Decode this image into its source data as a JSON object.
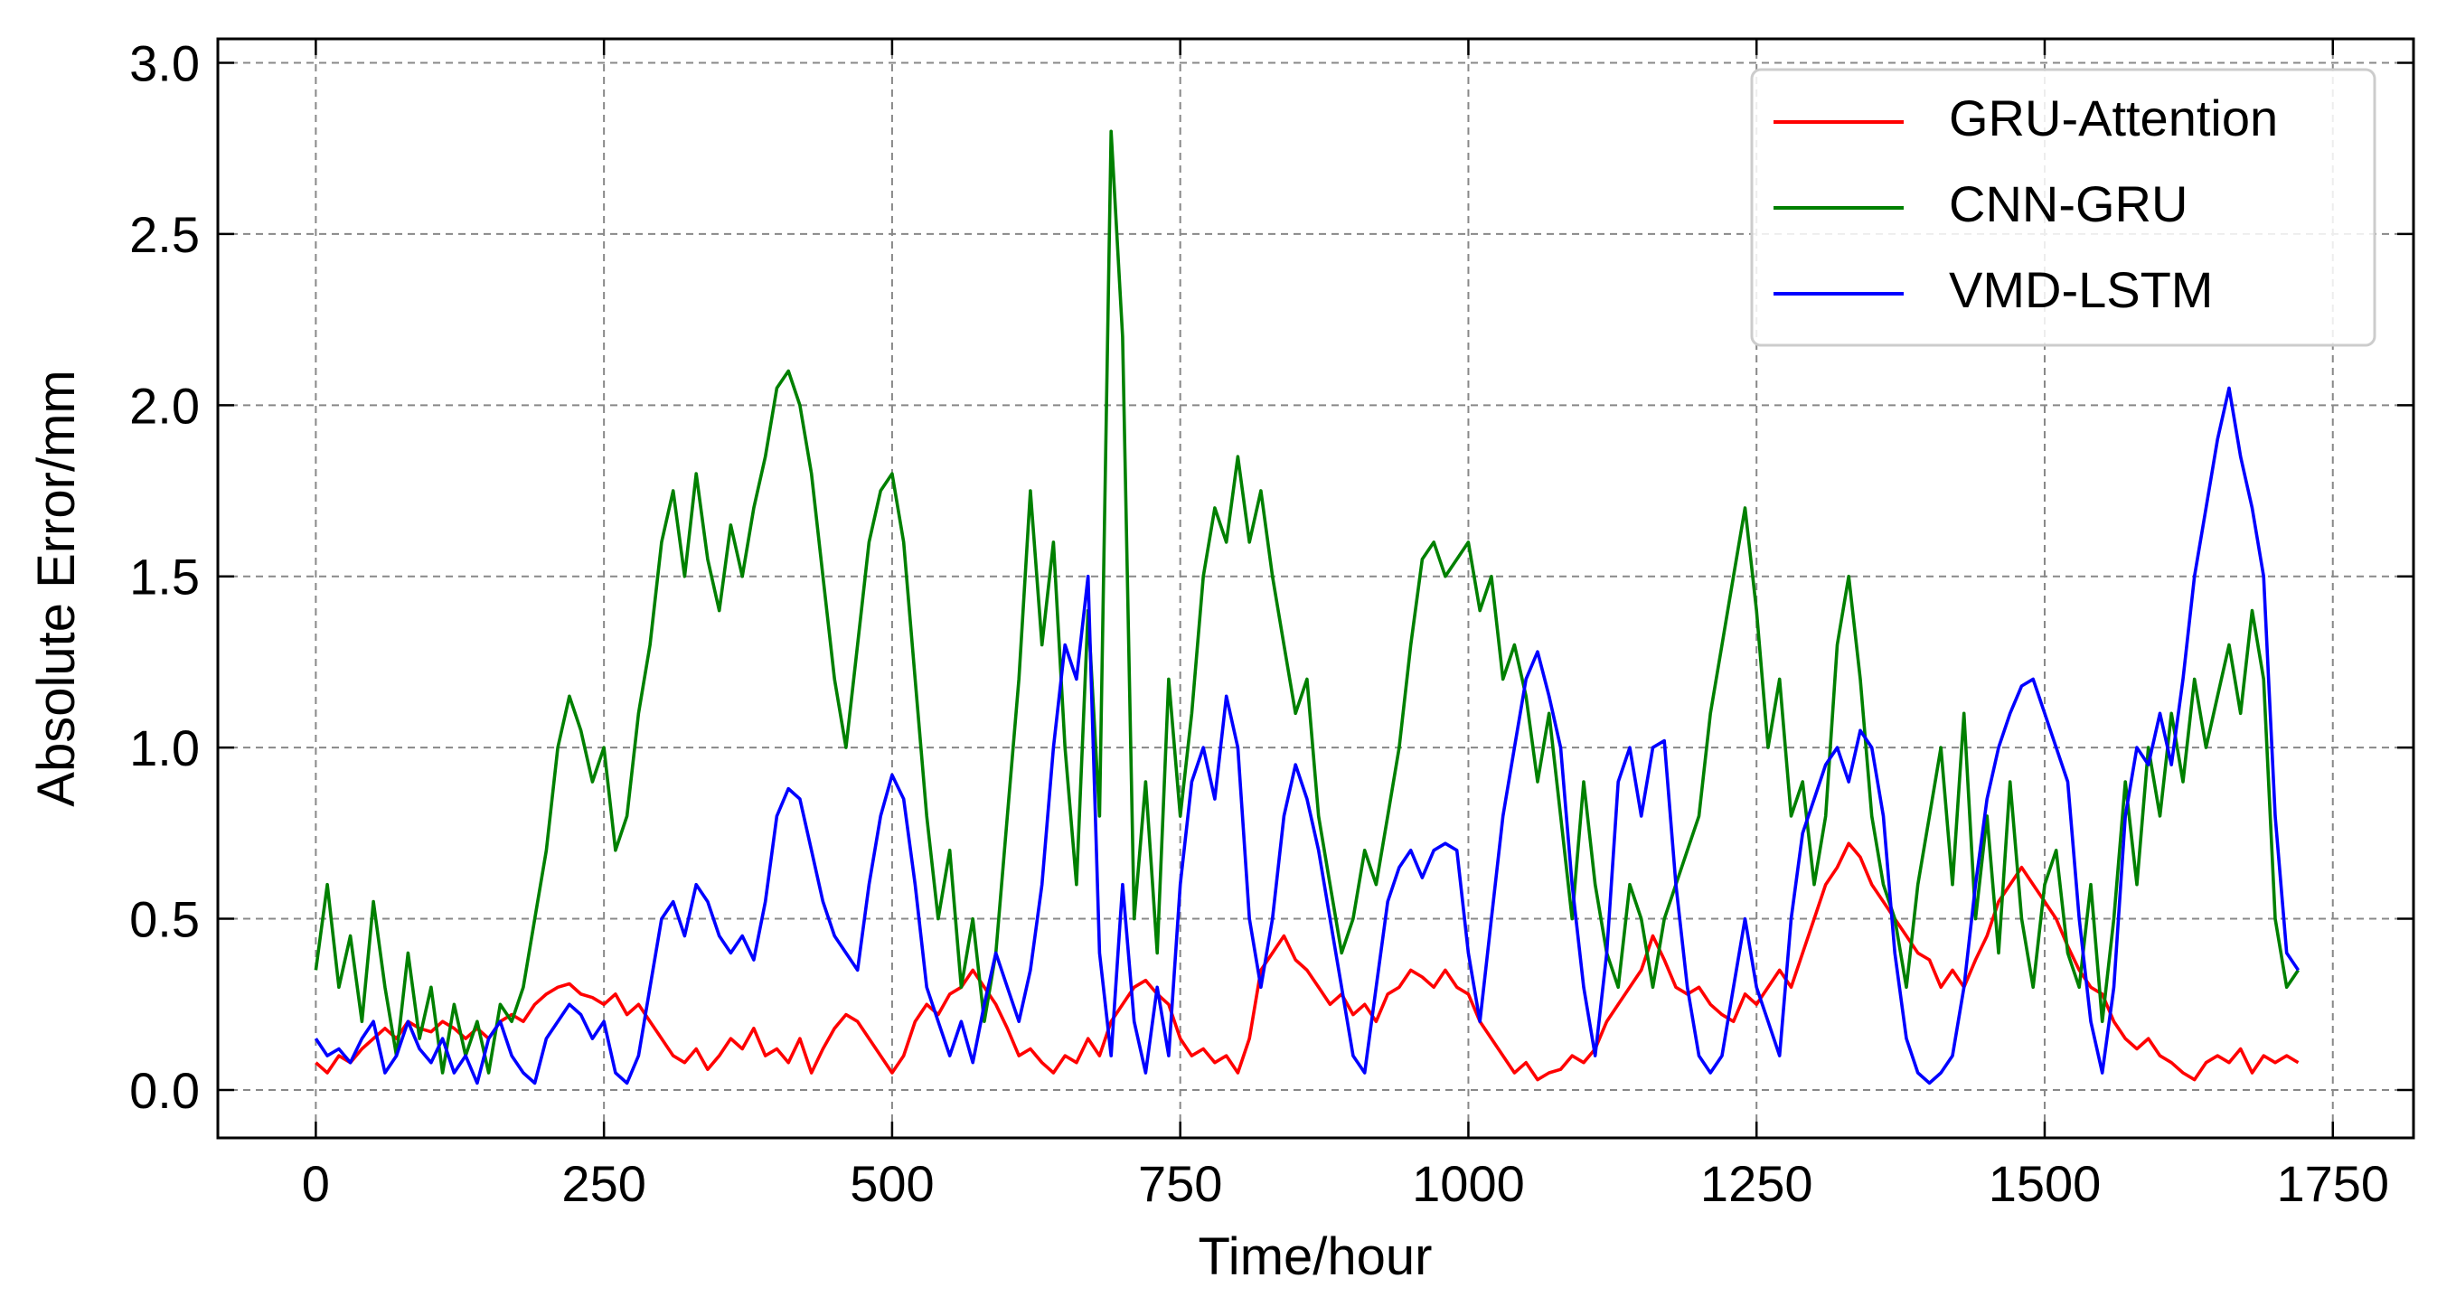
{
  "chart_data": {
    "type": "line",
    "xlabel": "Time/hour",
    "ylabel": "Absolute Error/mm",
    "xlim": [
      -85,
      1820
    ],
    "ylim": [
      -0.14,
      3.07
    ],
    "xticks": [
      0,
      250,
      500,
      750,
      1000,
      1250,
      1500,
      1750
    ],
    "yticks": [
      {
        "value": 0,
        "label": "0.0"
      },
      0.5,
      {
        "value": 1,
        "label": "1.0"
      },
      1.5,
      {
        "value": 2,
        "label": "2.0"
      },
      2.5,
      {
        "value": 3,
        "label": "3.0"
      }
    ],
    "grid": true,
    "legend": "upper right",
    "x": [
      0,
      10,
      20,
      30,
      40,
      50,
      60,
      70,
      80,
      90,
      100,
      110,
      120,
      130,
      140,
      150,
      160,
      170,
      180,
      190,
      200,
      210,
      220,
      230,
      240,
      250,
      260,
      270,
      280,
      290,
      300,
      310,
      320,
      330,
      340,
      350,
      360,
      370,
      380,
      390,
      400,
      410,
      420,
      430,
      440,
      450,
      460,
      470,
      480,
      490,
      500,
      510,
      520,
      530,
      540,
      550,
      560,
      570,
      580,
      590,
      600,
      610,
      620,
      630,
      640,
      650,
      660,
      670,
      680,
      690,
      700,
      710,
      720,
      730,
      740,
      750,
      760,
      770,
      780,
      790,
      800,
      810,
      820,
      830,
      840,
      850,
      860,
      870,
      880,
      890,
      900,
      910,
      920,
      930,
      940,
      950,
      960,
      970,
      980,
      990,
      1000,
      1010,
      1020,
      1030,
      1040,
      1050,
      1060,
      1070,
      1080,
      1090,
      1100,
      1110,
      1120,
      1130,
      1140,
      1150,
      1160,
      1170,
      1180,
      1190,
      1200,
      1210,
      1220,
      1230,
      1240,
      1250,
      1260,
      1270,
      1280,
      1290,
      1300,
      1310,
      1320,
      1330,
      1340,
      1350,
      1360,
      1370,
      1380,
      1390,
      1400,
      1410,
      1420,
      1430,
      1440,
      1450,
      1460,
      1470,
      1480,
      1490,
      1500,
      1510,
      1520,
      1530,
      1540,
      1550,
      1560,
      1570,
      1580,
      1590,
      1600,
      1610,
      1620,
      1630,
      1640,
      1650,
      1660,
      1670,
      1680,
      1690,
      1700,
      1710,
      1720
    ],
    "series": [
      {
        "name": "GRU-Attention",
        "color": "#ff0000",
        "values": [
          0.08,
          0.05,
          0.1,
          0.08,
          0.12,
          0.15,
          0.18,
          0.15,
          0.2,
          0.18,
          0.17,
          0.2,
          0.18,
          0.15,
          0.18,
          0.15,
          0.2,
          0.22,
          0.2,
          0.25,
          0.28,
          0.3,
          0.31,
          0.28,
          0.27,
          0.25,
          0.28,
          0.22,
          0.25,
          0.2,
          0.15,
          0.1,
          0.08,
          0.12,
          0.06,
          0.1,
          0.15,
          0.12,
          0.18,
          0.1,
          0.12,
          0.08,
          0.15,
          0.05,
          0.12,
          0.18,
          0.22,
          0.2,
          0.15,
          0.1,
          0.05,
          0.1,
          0.2,
          0.25,
          0.22,
          0.28,
          0.3,
          0.35,
          0.3,
          0.25,
          0.18,
          0.1,
          0.12,
          0.08,
          0.05,
          0.1,
          0.08,
          0.15,
          0.1,
          0.2,
          0.25,
          0.3,
          0.32,
          0.28,
          0.25,
          0.15,
          0.1,
          0.12,
          0.08,
          0.1,
          0.05,
          0.15,
          0.35,
          0.4,
          0.45,
          0.38,
          0.35,
          0.3,
          0.25,
          0.28,
          0.22,
          0.25,
          0.2,
          0.28,
          0.3,
          0.35,
          0.33,
          0.3,
          0.35,
          0.3,
          0.28,
          0.2,
          0.15,
          0.1,
          0.05,
          0.08,
          0.03,
          0.05,
          0.06,
          0.1,
          0.08,
          0.12,
          0.2,
          0.25,
          0.3,
          0.35,
          0.45,
          0.38,
          0.3,
          0.28,
          0.3,
          0.25,
          0.22,
          0.2,
          0.28,
          0.25,
          0.3,
          0.35,
          0.3,
          0.4,
          0.5,
          0.6,
          0.65,
          0.72,
          0.68,
          0.6,
          0.55,
          0.5,
          0.45,
          0.4,
          0.38,
          0.3,
          0.35,
          0.3,
          0.38,
          0.45,
          0.55,
          0.6,
          0.65,
          0.6,
          0.55,
          0.5,
          0.42,
          0.35,
          0.3,
          0.28,
          0.2,
          0.15,
          0.12,
          0.15,
          0.1,
          0.08,
          0.05,
          0.03,
          0.08,
          0.1,
          0.08,
          0.12,
          0.05,
          0.1,
          0.08,
          0.1,
          0.08
        ]
      },
      {
        "name": "CNN-GRU",
        "color": "#008000",
        "values": [
          0.35,
          0.6,
          0.3,
          0.45,
          0.2,
          0.55,
          0.3,
          0.1,
          0.4,
          0.15,
          0.3,
          0.05,
          0.25,
          0.1,
          0.2,
          0.05,
          0.25,
          0.2,
          0.3,
          0.5,
          0.7,
          1.0,
          1.15,
          1.05,
          0.9,
          1.0,
          0.7,
          0.8,
          1.1,
          1.3,
          1.6,
          1.75,
          1.5,
          1.8,
          1.55,
          1.4,
          1.65,
          1.5,
          1.7,
          1.85,
          2.05,
          2.1,
          2.0,
          1.8,
          1.5,
          1.2,
          1.0,
          1.3,
          1.6,
          1.75,
          1.8,
          1.6,
          1.2,
          0.8,
          0.5,
          0.7,
          0.3,
          0.5,
          0.2,
          0.4,
          0.8,
          1.2,
          1.75,
          1.3,
          1.6,
          1.0,
          0.6,
          1.4,
          0.8,
          2.8,
          2.2,
          0.5,
          0.9,
          0.4,
          1.2,
          0.8,
          1.1,
          1.5,
          1.7,
          1.6,
          1.85,
          1.6,
          1.75,
          1.5,
          1.3,
          1.1,
          1.2,
          0.8,
          0.6,
          0.4,
          0.5,
          0.7,
          0.6,
          0.8,
          1.0,
          1.3,
          1.55,
          1.6,
          1.5,
          1.55,
          1.6,
          1.4,
          1.5,
          1.2,
          1.3,
          1.15,
          0.9,
          1.1,
          0.8,
          0.5,
          0.9,
          0.6,
          0.4,
          0.3,
          0.6,
          0.5,
          0.3,
          0.5,
          0.6,
          0.7,
          0.8,
          1.1,
          1.3,
          1.5,
          1.7,
          1.4,
          1.0,
          1.2,
          0.8,
          0.9,
          0.6,
          0.8,
          1.3,
          1.5,
          1.2,
          0.8,
          0.6,
          0.5,
          0.3,
          0.6,
          0.8,
          1.0,
          0.6,
          1.1,
          0.5,
          0.8,
          0.4,
          0.9,
          0.5,
          0.3,
          0.6,
          0.7,
          0.4,
          0.3,
          0.6,
          0.2,
          0.5,
          0.9,
          0.6,
          1.0,
          0.8,
          1.1,
          0.9,
          1.2,
          1.0,
          1.15,
          1.3,
          1.1,
          1.4,
          1.2,
          0.5,
          0.3,
          0.35
        ]
      },
      {
        "name": "VMD-LSTM",
        "color": "#0000ff",
        "values": [
          0.15,
          0.1,
          0.12,
          0.08,
          0.15,
          0.2,
          0.05,
          0.1,
          0.2,
          0.12,
          0.08,
          0.15,
          0.05,
          0.1,
          0.02,
          0.15,
          0.2,
          0.1,
          0.05,
          0.02,
          0.15,
          0.2,
          0.25,
          0.22,
          0.15,
          0.2,
          0.05,
          0.02,
          0.1,
          0.3,
          0.5,
          0.55,
          0.45,
          0.6,
          0.55,
          0.45,
          0.4,
          0.45,
          0.38,
          0.55,
          0.8,
          0.88,
          0.85,
          0.7,
          0.55,
          0.45,
          0.4,
          0.35,
          0.6,
          0.8,
          0.92,
          0.85,
          0.6,
          0.3,
          0.2,
          0.1,
          0.2,
          0.08,
          0.25,
          0.4,
          0.3,
          0.2,
          0.35,
          0.6,
          1.0,
          1.3,
          1.2,
          1.5,
          0.4,
          0.1,
          0.6,
          0.2,
          0.05,
          0.3,
          0.1,
          0.6,
          0.9,
          1.0,
          0.85,
          1.15,
          1.0,
          0.5,
          0.3,
          0.5,
          0.8,
          0.95,
          0.85,
          0.7,
          0.5,
          0.3,
          0.1,
          0.05,
          0.3,
          0.55,
          0.65,
          0.7,
          0.62,
          0.7,
          0.72,
          0.7,
          0.4,
          0.2,
          0.5,
          0.8,
          1.0,
          1.2,
          1.28,
          1.15,
          1.0,
          0.6,
          0.3,
          0.1,
          0.4,
          0.9,
          1.0,
          0.8,
          1.0,
          1.02,
          0.6,
          0.3,
          0.1,
          0.05,
          0.1,
          0.3,
          0.5,
          0.3,
          0.2,
          0.1,
          0.5,
          0.75,
          0.85,
          0.95,
          1.0,
          0.9,
          1.05,
          1.0,
          0.8,
          0.4,
          0.15,
          0.05,
          0.02,
          0.05,
          0.1,
          0.3,
          0.6,
          0.85,
          1.0,
          1.1,
          1.18,
          1.2,
          1.1,
          1.0,
          0.9,
          0.5,
          0.2,
          0.05,
          0.3,
          0.8,
          1.0,
          0.95,
          1.1,
          0.95,
          1.2,
          1.5,
          1.7,
          1.9,
          2.05,
          1.85,
          1.7,
          1.5,
          0.8,
          0.4,
          0.35
        ]
      }
    ]
  }
}
